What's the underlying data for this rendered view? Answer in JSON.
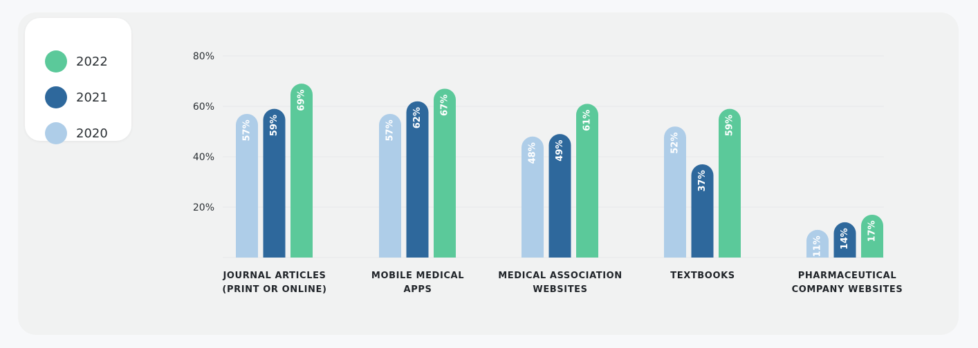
{
  "legend": {
    "items": [
      {
        "label": "2022",
        "color": "#5bc99a"
      },
      {
        "label": "2021",
        "color": "#2e689c"
      },
      {
        "label": "2020",
        "color": "#aecde8"
      }
    ]
  },
  "chart_data": {
    "type": "bar",
    "categories": [
      "JOURNAL ARTICLES\n(PRINT OR ONLINE)",
      "MOBILE MEDICAL\nAPPS",
      "MEDICAL ASSOCIATION\nWEBSITES",
      "TEXTBOOKS",
      "PHARMACEUTICAL\nCOMPANY WEBSITES"
    ],
    "series": [
      {
        "name": "2020",
        "color": "#aecde8",
        "values": [
          57,
          57,
          48,
          52,
          11
        ],
        "labels": [
          "57%",
          "57%",
          "48%",
          "52%",
          "11%"
        ]
      },
      {
        "name": "2021",
        "color": "#2e689c",
        "values": [
          59,
          62,
          49,
          37,
          14
        ],
        "labels": [
          "59%",
          "62%",
          "49%",
          "37%",
          "14%"
        ]
      },
      {
        "name": "2022",
        "color": "#5bc99a",
        "values": [
          69,
          67,
          61,
          59,
          17
        ],
        "labels": [
          "69%",
          "67%",
          "61%",
          "59%",
          "17%"
        ]
      }
    ],
    "yticks": [
      20,
      40,
      60,
      80
    ],
    "ytick_labels": [
      "20%",
      "40%",
      "60%",
      "80%"
    ],
    "ylim": [
      0,
      80
    ],
    "grid": true,
    "legend_position": "top-left",
    "title": "",
    "xlabel": "",
    "ylabel": ""
  }
}
